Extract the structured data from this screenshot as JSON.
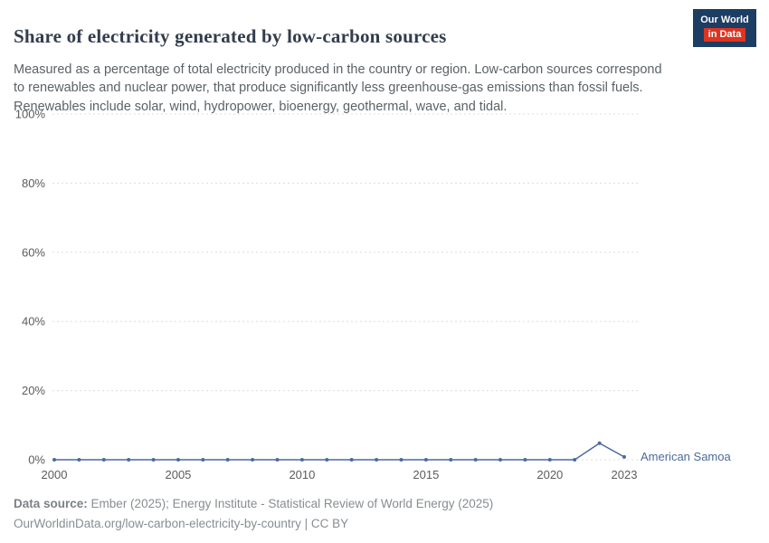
{
  "header": {
    "title": "Share of electricity generated by low-carbon sources",
    "subtitle": "Measured as a percentage of total electricity produced in the country or region. Low-carbon sources correspond to renewables and nuclear power, that produce significantly less greenhouse-gas emissions than fossil fuels. Renewables include solar, wind, hydropower, bioenergy, geothermal, wave, and tidal.",
    "logo": {
      "line1": "Our World",
      "line2": "in Data"
    }
  },
  "chart_data": {
    "type": "line",
    "title": "Share of electricity generated by low-carbon sources",
    "x": [
      2000,
      2001,
      2002,
      2003,
      2004,
      2005,
      2006,
      2007,
      2008,
      2009,
      2010,
      2011,
      2012,
      2013,
      2014,
      2015,
      2016,
      2017,
      2018,
      2019,
      2020,
      2021,
      2022,
      2023
    ],
    "series": [
      {
        "name": "American Samoa",
        "color": "#4c6a9c",
        "values": [
          0,
          0,
          0,
          0,
          0,
          0,
          0,
          0,
          0,
          0,
          0,
          0,
          0,
          0,
          0,
          0,
          0,
          0,
          0,
          0,
          0,
          0,
          4.8,
          0.8
        ]
      }
    ],
    "xlabel": "",
    "ylabel": "",
    "ylim": [
      0,
      100
    ],
    "yticks": [
      0,
      20,
      40,
      60,
      80,
      100
    ],
    "ytick_labels": [
      "0%",
      "20%",
      "40%",
      "60%",
      "80%",
      "100%"
    ],
    "xticks": [
      2000,
      2005,
      2010,
      2015,
      2020,
      2023
    ],
    "grid": "horizontal-dashed",
    "legend_position": "end-of-line-label",
    "colors": {
      "gridline": "#dcdcdc",
      "tick_label": "#5b5b5b",
      "series": "#4c6a9c"
    }
  },
  "footer": {
    "datasource_label": "Data source:",
    "datasource_text": "Ember (2025); Energy Institute - Statistical Review of World Energy (2025)",
    "url_text": "OurWorldinData.org/low-carbon-electricity-by-country | CC BY"
  }
}
